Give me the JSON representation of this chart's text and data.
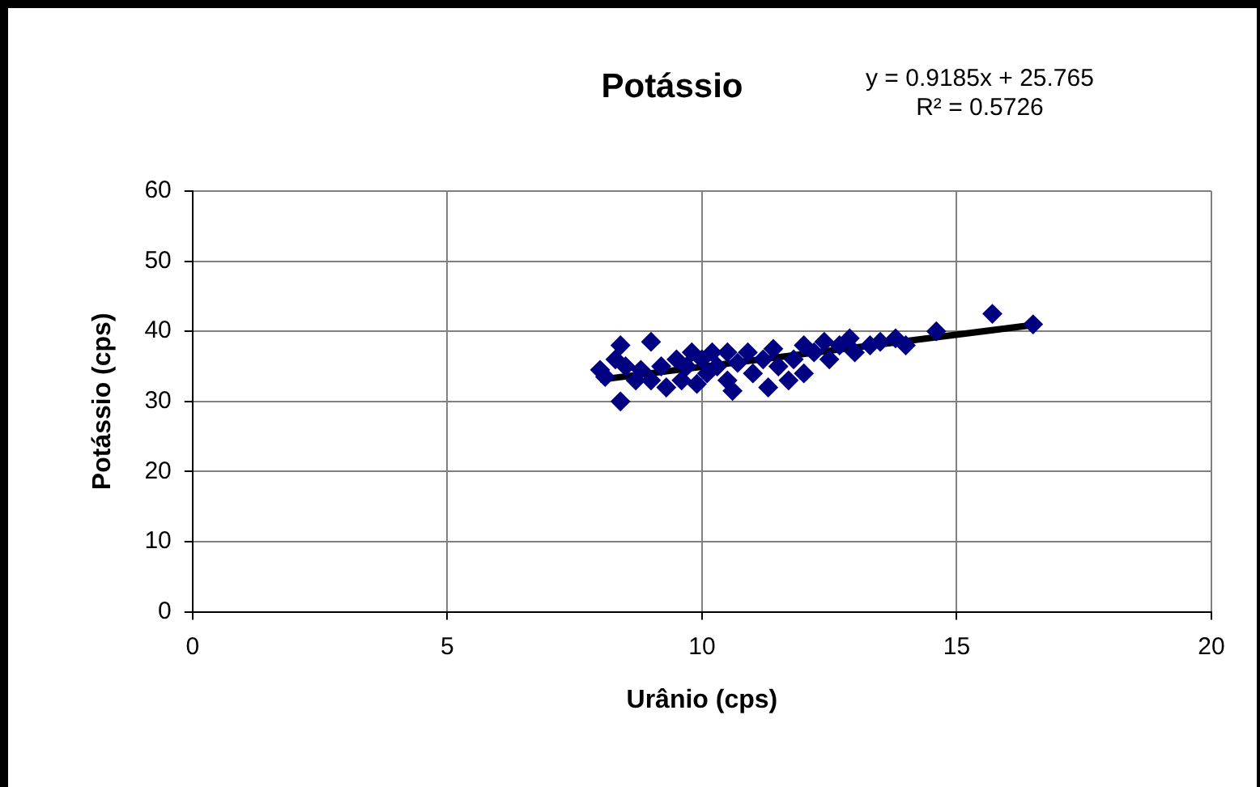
{
  "chart_data": {
    "type": "scatter",
    "title": "Potássio",
    "xlabel": "Urânio (cps)",
    "ylabel": "Potássio (cps)",
    "annotations": [
      "y = 0.9185x  + 25.765",
      "R² = 0.5726"
    ],
    "xlim": [
      0,
      20
    ],
    "xticks": [
      0,
      5,
      10,
      15,
      20
    ],
    "ylim": [
      0,
      60
    ],
    "yticks": [
      0,
      10,
      20,
      30,
      40,
      50,
      60
    ],
    "grid": true,
    "legend": false,
    "marker": "diamond",
    "series": [
      {
        "color": "#000080",
        "x": [
          8.0,
          8.1,
          8.3,
          8.4,
          8.4,
          8.5,
          8.7,
          8.8,
          9.0,
          9.0,
          9.2,
          9.3,
          9.5,
          9.6,
          9.7,
          9.8,
          9.9,
          10.0,
          10.1,
          10.2,
          10.3,
          10.5,
          10.5,
          10.6,
          10.7,
          10.9,
          11.0,
          11.2,
          11.3,
          11.4,
          11.5,
          11.7,
          11.8,
          12.0,
          12.0,
          12.2,
          12.4,
          12.5,
          12.7,
          12.9,
          13.0,
          13.3,
          13.5,
          13.8,
          14.0,
          14.6,
          15.7,
          16.5
        ],
        "values": [
          34.5,
          33.5,
          36,
          38,
          30,
          35,
          33,
          34.5,
          38.5,
          33,
          35,
          32,
          36,
          33,
          35,
          37,
          32.5,
          36,
          34,
          37,
          35,
          33,
          37,
          31.5,
          35.5,
          37,
          34,
          36,
          32,
          37.5,
          35,
          33,
          36,
          38,
          34,
          37,
          38.5,
          36,
          38,
          39,
          37,
          38,
          38.5,
          39,
          38,
          40,
          42.5,
          41
        ]
      },
      {
        "type": "line",
        "color": "#000000",
        "marker": "none",
        "x": [
          8.0,
          16.5
        ],
        "values": [
          33.1,
          40.9
        ]
      }
    ]
  }
}
